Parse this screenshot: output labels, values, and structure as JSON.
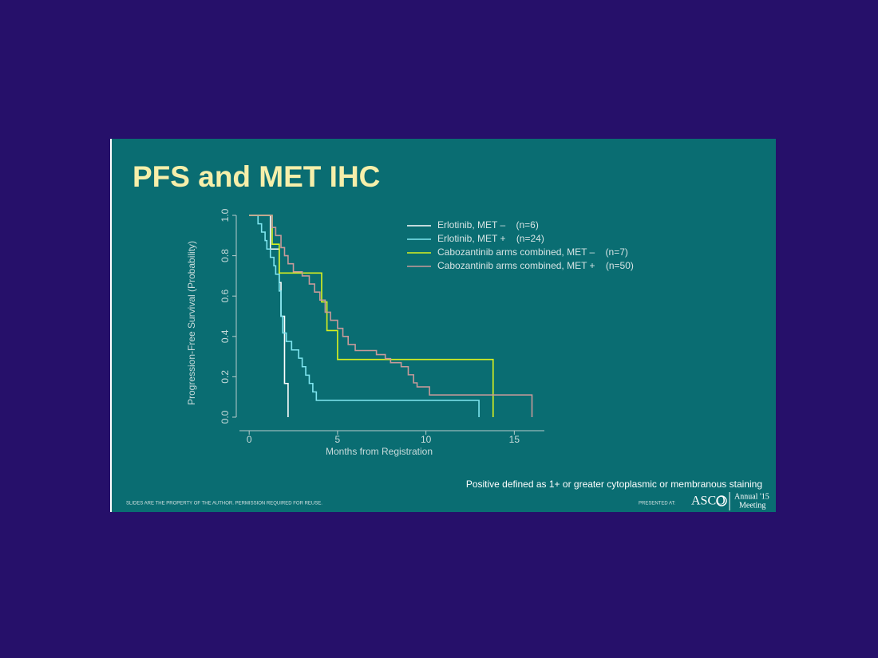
{
  "chart_data": {
    "type": "line",
    "step": true,
    "title": "PFS and MET IHC",
    "ylabel": "Progression-Free Survival (Probability)",
    "xlabel": "Months from Registration",
    "note": "Positive defined as 1+ or greater cytoplasmic or membranous staining",
    "footer": "SLIDES ARE THE PROPERTY OF THE AUTHOR. PERMISSION REQUIRED FOR REUSE.",
    "presented_at": "PRESENTED AT:",
    "logo": "ASCO",
    "meeting": [
      "Annual '15",
      "Meeting"
    ],
    "xlim": [
      -0.55,
      16.7
    ],
    "xticks": [
      0,
      5,
      10,
      15
    ],
    "ylim": [
      0,
      1
    ],
    "yticks": [
      {
        "value": 0,
        "label": "0.0"
      },
      0.2,
      0.4,
      0.6,
      0.8,
      {
        "value": 1,
        "label": "1.0"
      }
    ],
    "series": [
      {
        "name": "Erlotinib, MET –    (n=6)",
        "color": "#ffffff",
        "x": [
          0,
          1.2,
          1.7,
          1.8,
          2.0,
          2.2
        ],
        "values": [
          1,
          0.833,
          0.667,
          0.5,
          0.167,
          0
        ]
      },
      {
        "name": "Erlotinib, MET +    (n=24)",
        "color": "#7fe6f0",
        "x": [
          0,
          0.5,
          0.7,
          0.9,
          1.0,
          1.2,
          1.4,
          1.5,
          1.7,
          1.8,
          1.9,
          2.1,
          2.4,
          2.8,
          3.0,
          3.2,
          3.4,
          3.6,
          3.8,
          13.0
        ],
        "values": [
          1,
          0.958,
          0.917,
          0.875,
          0.833,
          0.792,
          0.75,
          0.708,
          0.625,
          0.5,
          0.417,
          0.375,
          0.333,
          0.292,
          0.25,
          0.208,
          0.167,
          0.125,
          0.083,
          0
        ]
      },
      {
        "name": "Cabozantinib arms combined, MET –    (n=7)",
        "color": "#d8f020",
        "x": [
          0,
          1.3,
          1.7,
          4.1,
          4.4,
          5.0,
          13.8
        ],
        "values": [
          1,
          0.857,
          0.714,
          0.571,
          0.429,
          0.286,
          0
        ]
      },
      {
        "name": "Cabozantinib arms combined, MET +    (n=50)",
        "color": "#c89a9a",
        "x": [
          0,
          1.3,
          1.5,
          1.8,
          2.0,
          2.2,
          2.5,
          3.0,
          3.4,
          3.7,
          4.0,
          4.3,
          4.6,
          5.0,
          5.3,
          5.6,
          6.0,
          7.2,
          7.7,
          8.0,
          8.6,
          9.0,
          9.3,
          9.5,
          10.2,
          16.0
        ],
        "values": [
          1,
          0.94,
          0.9,
          0.84,
          0.8,
          0.76,
          0.72,
          0.7,
          0.66,
          0.62,
          0.58,
          0.52,
          0.48,
          0.44,
          0.4,
          0.36,
          0.33,
          0.31,
          0.29,
          0.27,
          0.25,
          0.21,
          0.17,
          0.15,
          0.11,
          0
        ]
      }
    ]
  }
}
